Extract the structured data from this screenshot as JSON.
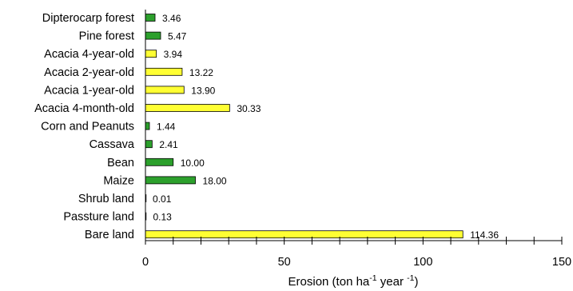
{
  "chart_data": {
    "type": "bar",
    "orientation": "horizontal",
    "categories": [
      "Dipterocarp forest",
      "Pine forest",
      "Acacia 4-year-old",
      "Acacia 2-year-old",
      "Acacia 1-year-old",
      "Acacia 4-month-old",
      "Corn and Peanuts",
      "Cassava",
      "Bean",
      "Maize",
      "Shrub land",
      "Passture land",
      "Bare land"
    ],
    "values": [
      3.46,
      5.47,
      3.94,
      13.22,
      13.9,
      30.33,
      1.44,
      2.41,
      10.0,
      18.0,
      0.01,
      0.13,
      114.36
    ],
    "value_labels": [
      "3.46",
      "5.47",
      "3.94",
      "13.22",
      "13.90",
      "30.33",
      "1.44",
      "2.41",
      "10.00",
      "18.00",
      "0.01",
      "0.13",
      "114.36"
    ],
    "bar_colors": [
      "#2ca02c",
      "#2ca02c",
      "#ffff33",
      "#ffff33",
      "#ffff33",
      "#ffff33",
      "#2ca02c",
      "#2ca02c",
      "#2ca02c",
      "#2ca02c",
      "#2ca02c",
      "#2ca02c",
      "#ffff33"
    ],
    "xlabel_main": "Erosion (ton ha",
    "xlabel_sup1": "-1",
    "xlabel_mid": " year ",
    "xlabel_sup2": "-1",
    "xlabel_end": ")",
    "xlim": [
      0,
      150
    ],
    "xticks": [
      "0",
      "50",
      "100",
      "150"
    ],
    "grid": false,
    "legend": false
  }
}
